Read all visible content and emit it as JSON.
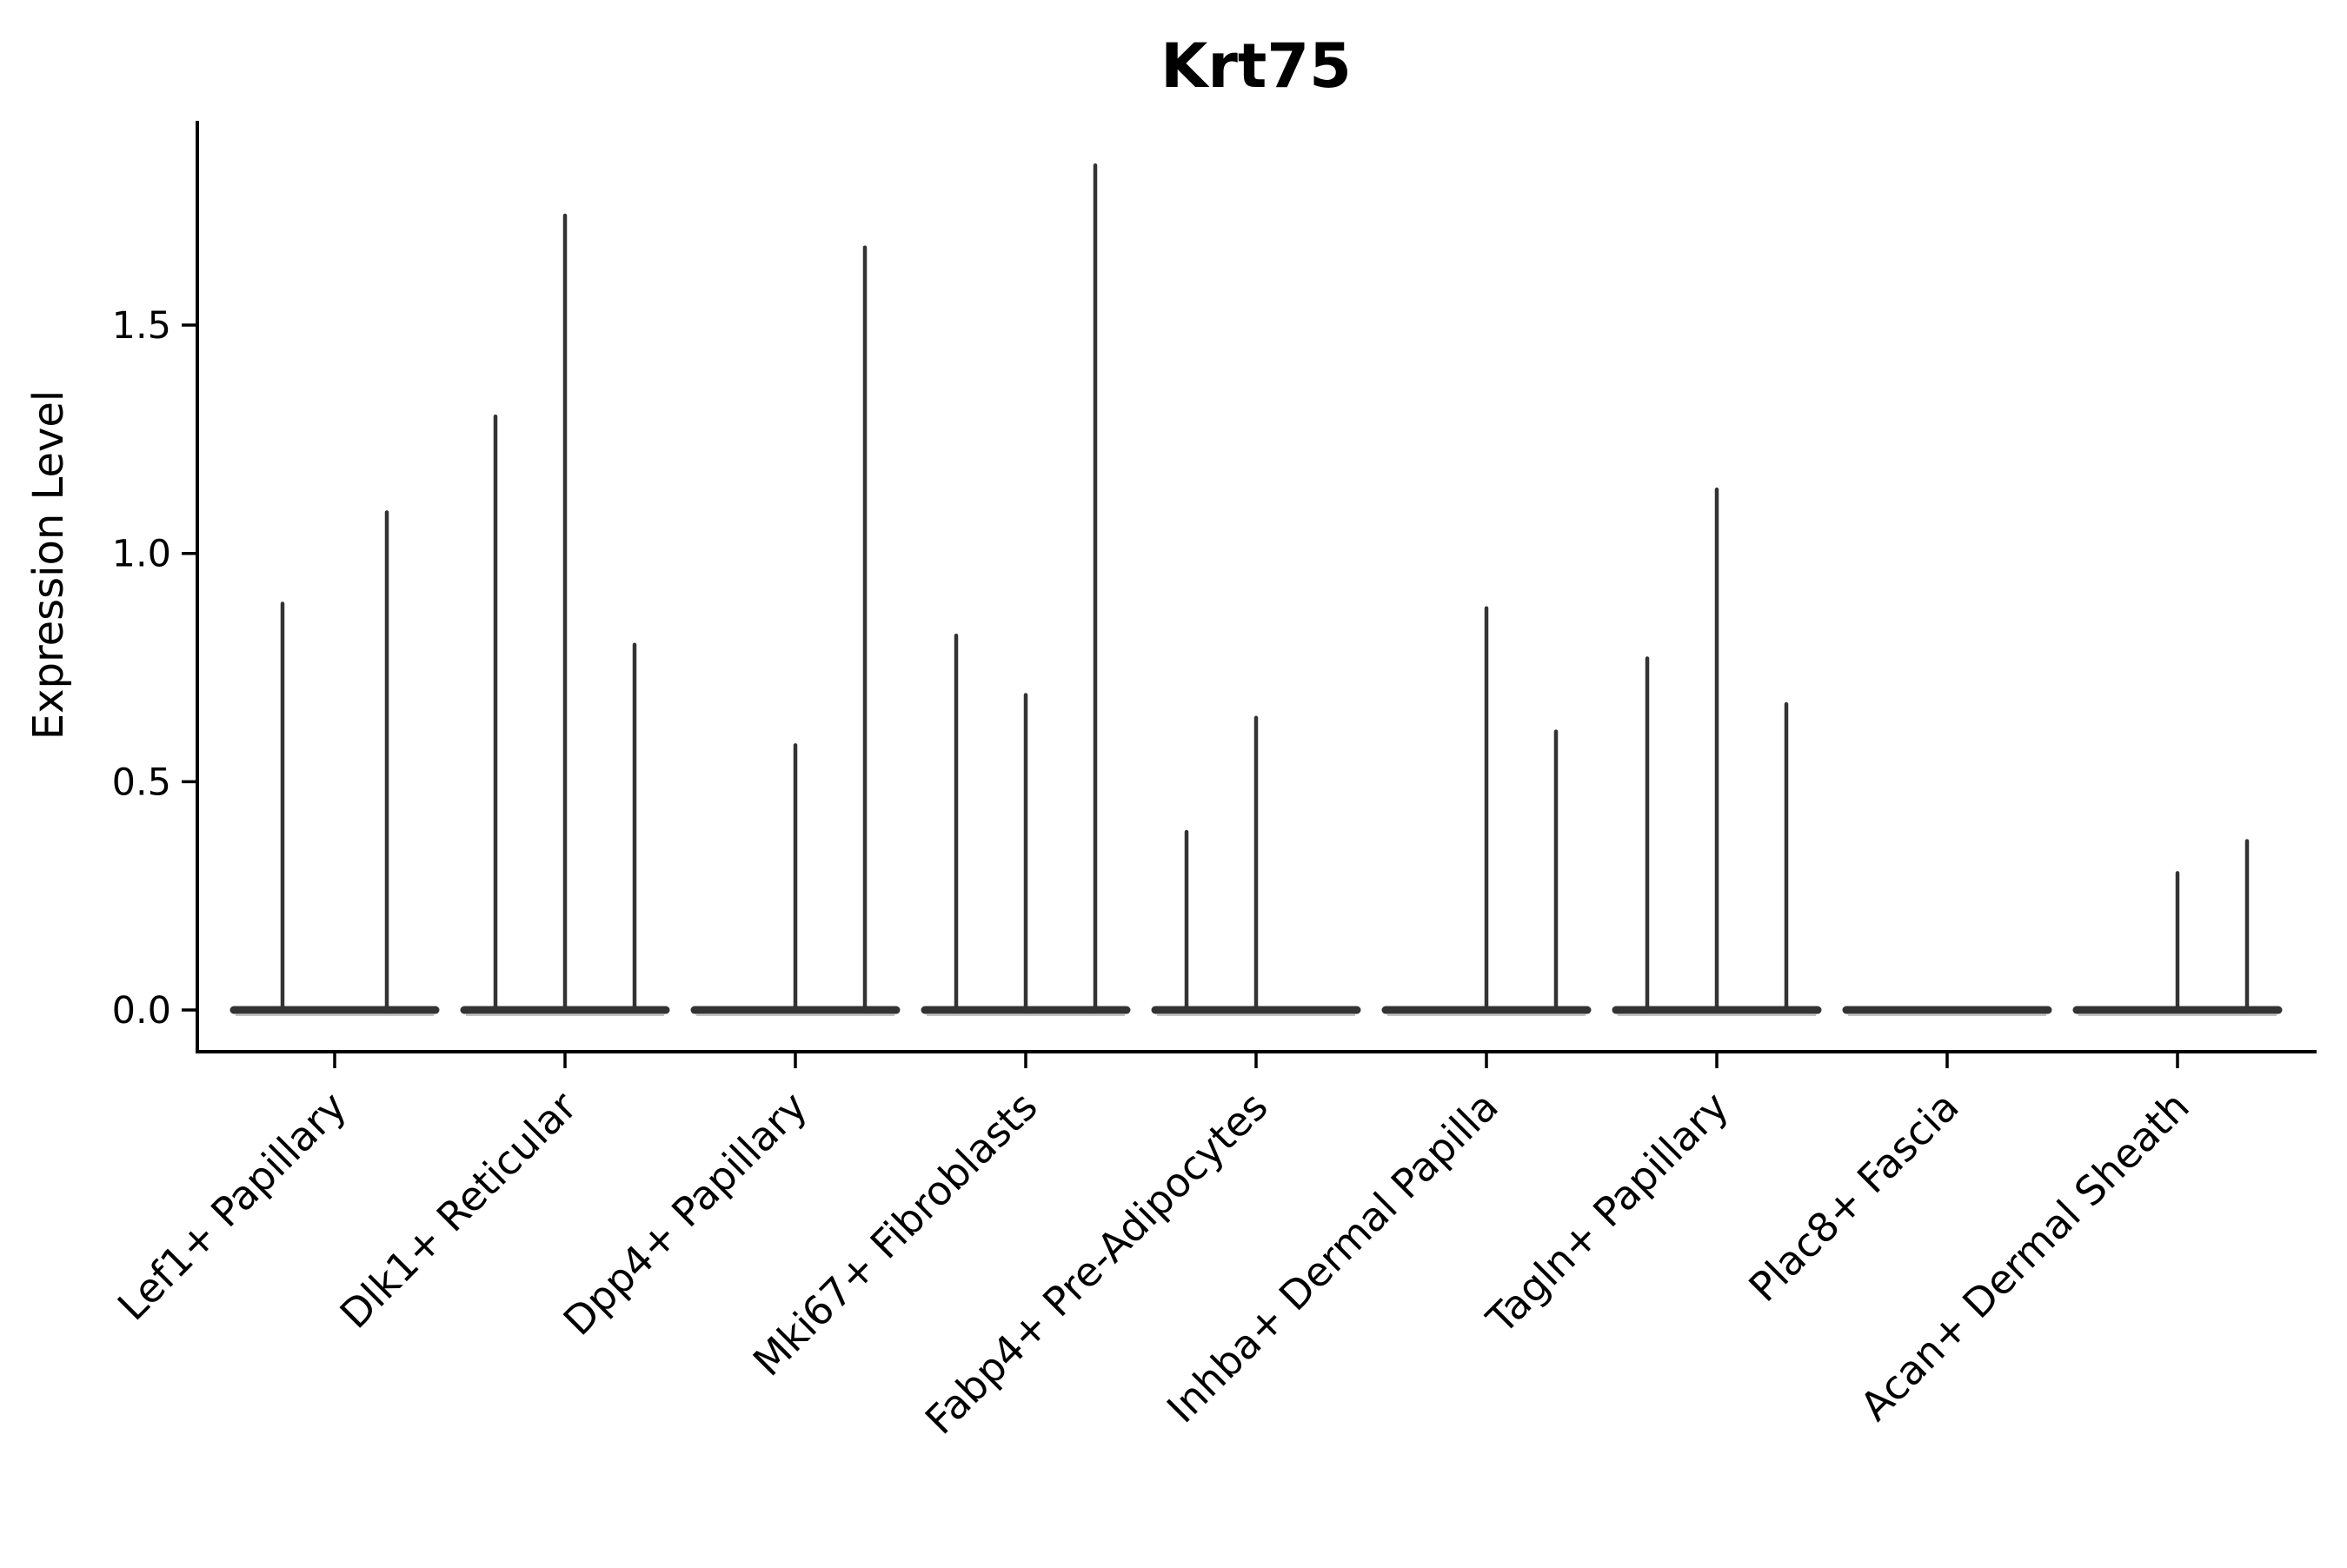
{
  "page": {
    "background_color": "#ffffff"
  },
  "chart_data": {
    "type": "violin",
    "title": "Krt75",
    "ylabel": "Expression Level",
    "xlabel": "",
    "grid": false,
    "legend": "none",
    "ylim": [
      -0.09,
      1.95
    ],
    "yticks": [
      0.0,
      0.5,
      1.0,
      1.5
    ],
    "ytick_labels": [
      "0.0",
      "0.5",
      "1.0",
      "1.5"
    ],
    "xtick_rotation_deg": 45,
    "colors": {
      "violin": "#333333",
      "violin_shadow": "#aaaaaa",
      "axis": "#000000",
      "text": "#000000"
    },
    "categories": [
      "Lef1+ Papillary",
      "Dlk1+ Reticular",
      "Dpp4+ Papillary",
      "Mki67+ Fibroblasts",
      "Fabp4+ Pre-Adipocytes",
      "Inhba+ Dermal Papilla",
      "Tagln+ Papillary",
      "Plac8+ Fascia",
      "Acan+ Dermal Sheath"
    ],
    "groups": [
      {
        "category": "Lef1+ Papillary",
        "violin_max_values": [
          0.89,
          1.09
        ]
      },
      {
        "category": "Dlk1+ Reticular",
        "violin_max_values": [
          1.3,
          1.74,
          0.8
        ]
      },
      {
        "category": "Dpp4+ Papillary",
        "violin_max_values": [
          0.0,
          0.58,
          1.67
        ]
      },
      {
        "category": "Mki67+ Fibroblasts",
        "violin_max_values": [
          0.82,
          0.69,
          1.85
        ]
      },
      {
        "category": "Fabp4+ Pre-Adipocytes",
        "violin_max_values": [
          0.39,
          0.64,
          0.0
        ]
      },
      {
        "category": "Inhba+ Dermal Papilla",
        "violin_max_values": [
          0.0,
          0.88,
          0.61
        ]
      },
      {
        "category": "Tagln+ Papillary",
        "violin_max_values": [
          0.77,
          1.14,
          0.67
        ]
      },
      {
        "category": "Plac8+ Fascia",
        "violin_max_values": [
          0.0
        ]
      },
      {
        "category": "Acan+ Dermal Sheath",
        "violin_max_values": [
          0.0,
          0.3,
          0.37
        ]
      }
    ]
  }
}
